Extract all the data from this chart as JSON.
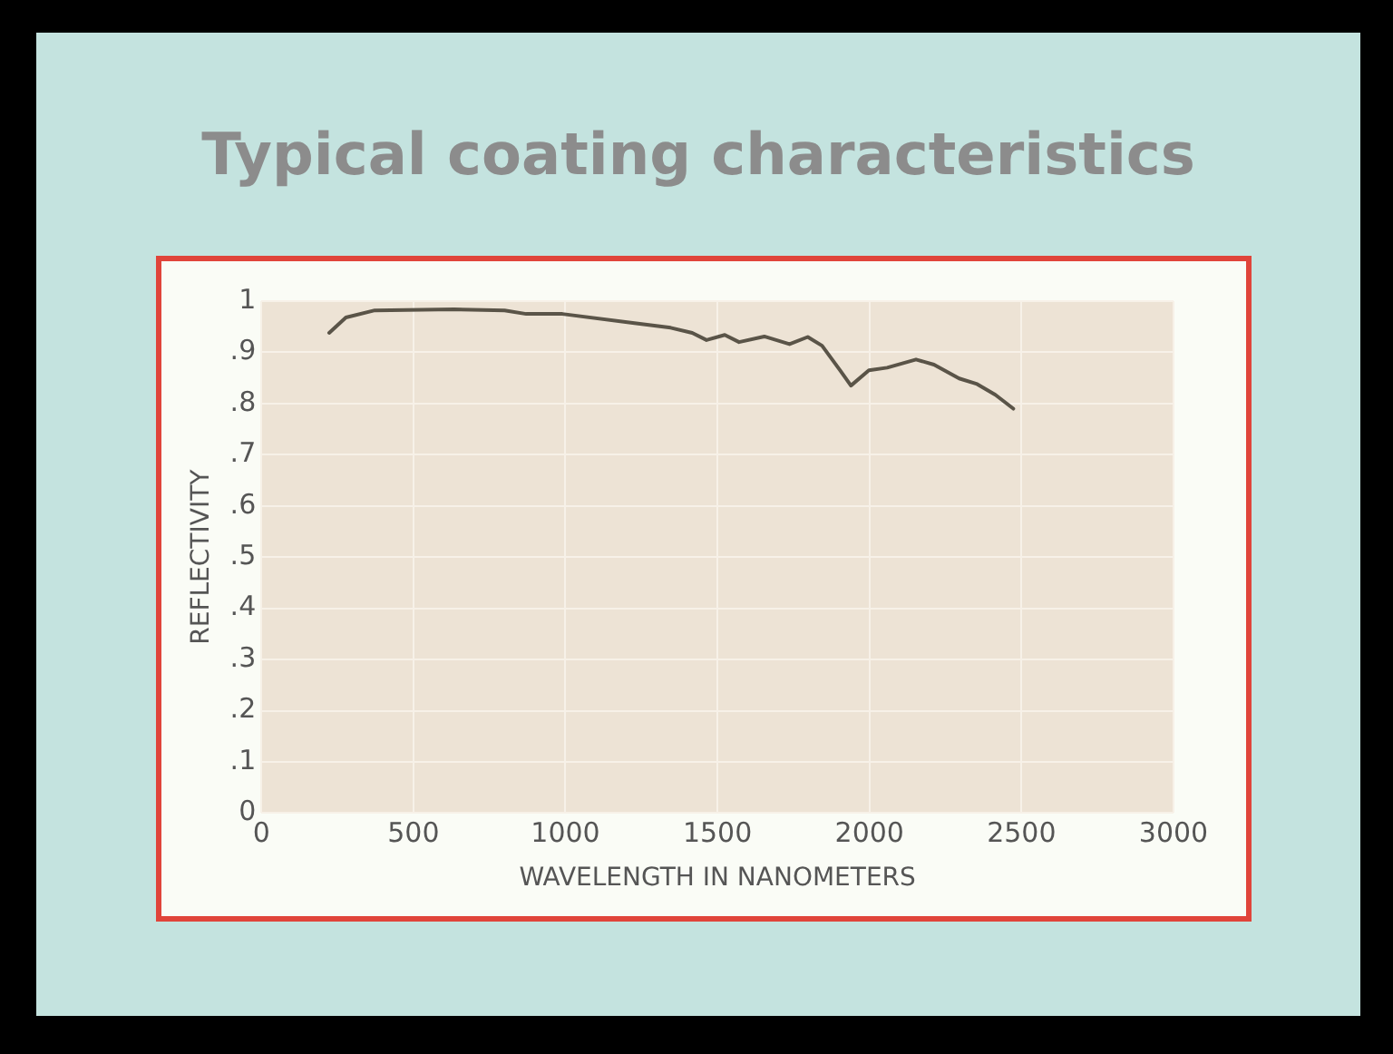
{
  "chart_data": {
    "type": "line",
    "title": "Typical coating characteristics",
    "xlabel": "WAVELENGTH IN NANOMETERS",
    "ylabel": "REFLECTIVITY",
    "series": [
      {
        "color": "#5a5448",
        "x": [
          223,
          278,
          373,
          634,
          800,
          871,
          990,
          1227,
          1346,
          1417,
          1464,
          1524,
          1571,
          1654,
          1737,
          1797,
          1844,
          1903,
          1939,
          1998,
          2058,
          2153,
          2212,
          2295,
          2354,
          2414,
          2473
        ],
        "values": [
          0.938,
          0.968,
          0.982,
          0.984,
          0.982,
          0.975,
          0.975,
          0.957,
          0.948,
          0.938,
          0.924,
          0.934,
          0.92,
          0.931,
          0.916,
          0.93,
          0.913,
          0.865,
          0.835,
          0.865,
          0.87,
          0.886,
          0.876,
          0.849,
          0.838,
          0.817,
          0.79
        ]
      }
    ],
    "xlim": [
      0,
      3000
    ],
    "xticks": [
      0,
      500,
      1000,
      1500,
      2000,
      2500,
      3000
    ],
    "ylim": [
      0,
      1
    ],
    "yticks": [
      0,
      {
        "value": 0.1,
        "label": ".1"
      },
      {
        "value": 0.2,
        "label": ".2"
      },
      {
        "value": 0.3,
        "label": ".3"
      },
      {
        "value": 0.4,
        "label": ".4"
      },
      {
        "value": 0.5,
        "label": ".5"
      },
      {
        "value": 0.6,
        "label": ".6"
      },
      {
        "value": 0.7,
        "label": ".7"
      },
      {
        "value": 0.8,
        "label": ".8"
      },
      {
        "value": 0.9,
        "label": ".9"
      },
      1
    ],
    "grid": true,
    "legend": false,
    "marker": "none",
    "line_style": "solid"
  }
}
